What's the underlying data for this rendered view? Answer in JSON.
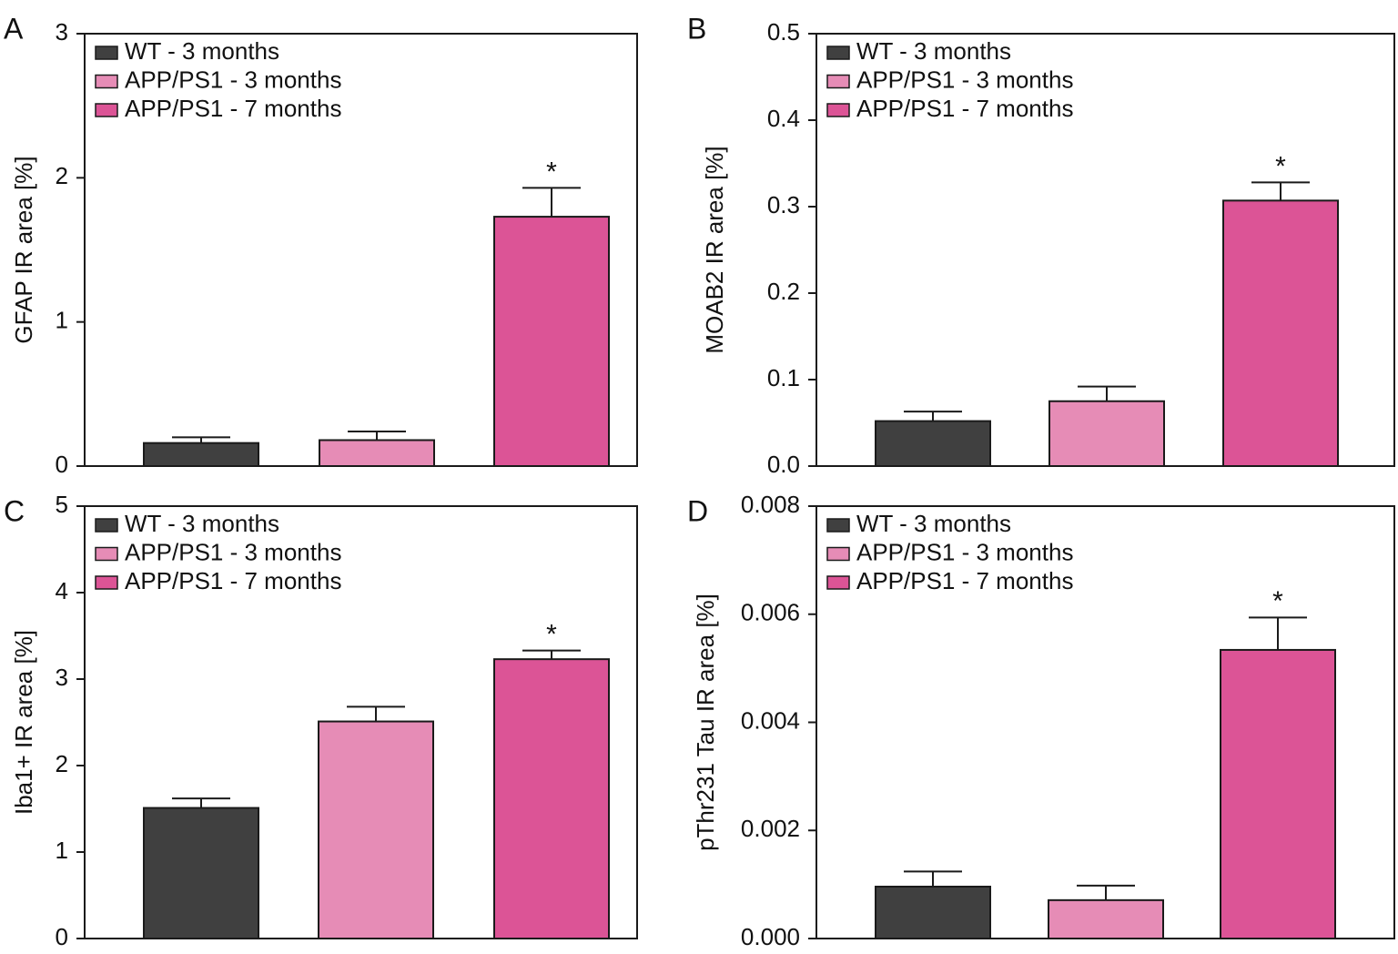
{
  "colors": {
    "wt_3m": "#404040",
    "app_3m": "#e68cb6",
    "app_7m": "#dc5496",
    "axis": "#1a1a1a",
    "background": "#ffffff"
  },
  "legend": [
    {
      "label": "WT - 3 months",
      "color_key": "wt_3m"
    },
    {
      "label": "APP/PS1 - 3 months",
      "color_key": "app_3m"
    },
    {
      "label": "APP/PS1 - 7 months",
      "color_key": "app_7m"
    }
  ],
  "chart_data": [
    {
      "panel": "A",
      "type": "bar",
      "ylabel": "GFAP IR area [%]",
      "ylim": [
        0,
        3
      ],
      "yticks": [
        "0",
        "1",
        "2",
        "3"
      ],
      "ytick_values": [
        0,
        1,
        2,
        3
      ],
      "categories": [
        "WT - 3 months",
        "APP/PS1 - 3 months",
        "APP/PS1 - 7 months"
      ],
      "values": [
        0.16,
        0.18,
        1.73
      ],
      "errors": [
        0.04,
        0.06,
        0.2
      ],
      "annotations": [
        "",
        "",
        "*"
      ],
      "legend_position": "top-left"
    },
    {
      "panel": "B",
      "type": "bar",
      "ylabel": "MOAB2 IR area [%]",
      "ylim": [
        0,
        0.5
      ],
      "yticks": [
        "0.0",
        "0.1",
        "0.2",
        "0.3",
        "0.4",
        "0.5"
      ],
      "ytick_values": [
        0,
        0.1,
        0.2,
        0.3,
        0.4,
        0.5
      ],
      "categories": [
        "WT - 3 months",
        "APP/PS1 - 3 months",
        "APP/PS1 - 7 months"
      ],
      "values": [
        0.052,
        0.075,
        0.307
      ],
      "errors": [
        0.011,
        0.017,
        0.021
      ],
      "annotations": [
        "",
        "",
        "*"
      ],
      "legend_position": "top-left"
    },
    {
      "panel": "C",
      "type": "bar",
      "ylabel": "Iba1+ IR area [%]",
      "ylim": [
        0,
        5
      ],
      "yticks": [
        "0",
        "1",
        "2",
        "3",
        "4",
        "5"
      ],
      "ytick_values": [
        0,
        1,
        2,
        3,
        4,
        5
      ],
      "categories": [
        "WT - 3 months",
        "APP/PS1 - 3 months",
        "APP/PS1 - 7 months"
      ],
      "values": [
        1.51,
        2.51,
        3.23
      ],
      "errors": [
        0.11,
        0.17,
        0.1
      ],
      "annotations": [
        "",
        "",
        "*"
      ],
      "legend_position": "top-left"
    },
    {
      "panel": "D",
      "type": "bar",
      "ylabel": "pThr231 Tau IR area [%]",
      "ylim": [
        0,
        0.008
      ],
      "yticks": [
        "0.000",
        "0.002",
        "0.004",
        "0.006",
        "0.008"
      ],
      "ytick_values": [
        0,
        0.002,
        0.004,
        0.006,
        0.008
      ],
      "categories": [
        "WT - 3 months",
        "APP/PS1 - 3 months",
        "APP/PS1 - 7 months"
      ],
      "values": [
        0.00096,
        0.00071,
        0.00534
      ],
      "errors": [
        0.00028,
        0.00027,
        0.0006
      ],
      "annotations": [
        "",
        "",
        "*"
      ],
      "legend_position": "top-left"
    }
  ]
}
